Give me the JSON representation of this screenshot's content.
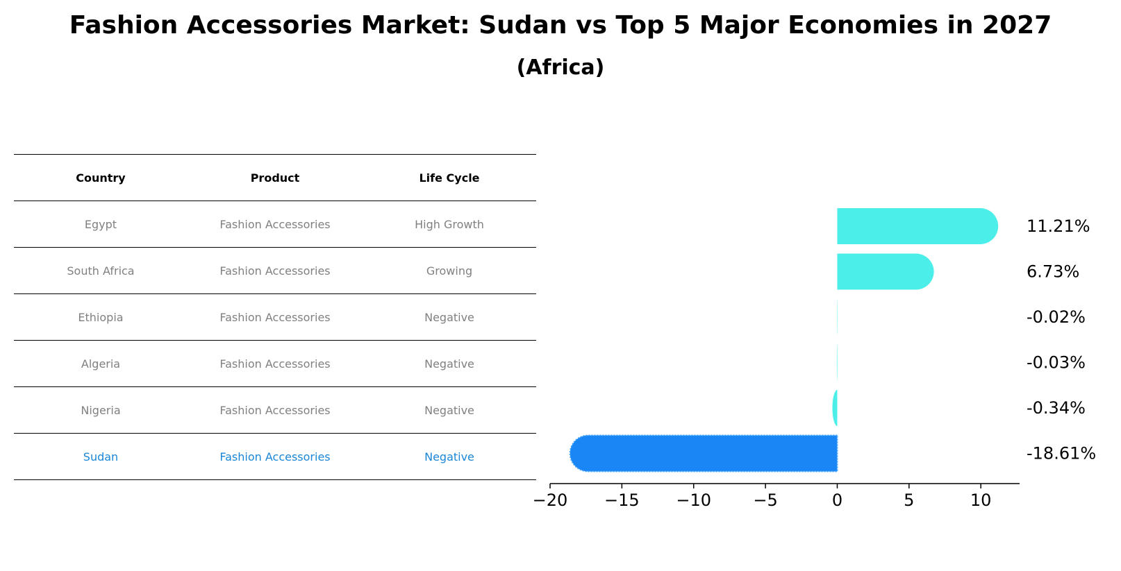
{
  "title": "Fashion Accessories Market: Sudan vs Top 5 Major Economies in 2027",
  "subtitle": "(Africa)",
  "table": {
    "headers": [
      "Country",
      "Product",
      "Life Cycle"
    ],
    "rows": [
      {
        "country": "Egypt",
        "product": "Fashion Accessories",
        "life_cycle": "High Growth"
      },
      {
        "country": "South Africa",
        "product": "Fashion Accessories",
        "life_cycle": "Growing"
      },
      {
        "country": "Ethiopia",
        "product": "Fashion Accessories",
        "life_cycle": "Negative"
      },
      {
        "country": "Algeria",
        "product": "Fashion Accessories",
        "life_cycle": "Negative"
      },
      {
        "country": "Nigeria",
        "product": "Fashion Accessories",
        "life_cycle": "Negative"
      },
      {
        "country": "Sudan",
        "product": "Fashion Accessories",
        "life_cycle": "Negative"
      }
    ]
  },
  "chart_data": {
    "type": "bar",
    "orientation": "horizontal",
    "categories": [
      "Egypt",
      "South Africa",
      "Ethiopia",
      "Algeria",
      "Nigeria",
      "Sudan"
    ],
    "values": [
      11.21,
      6.73,
      -0.02,
      -0.03,
      -0.34,
      -18.61
    ],
    "value_labels": [
      "11.21%",
      "6.73%",
      "-0.02%",
      "-0.03%",
      "-0.34%",
      "-18.61%"
    ],
    "highlight": "Sudan",
    "xlim": [
      -20,
      12.7
    ],
    "xticks": [
      -20,
      -15,
      -10,
      -5,
      0,
      5,
      10
    ],
    "xtick_labels": [
      "−20",
      "−15",
      "−10",
      "−5",
      "0",
      "5",
      "10"
    ],
    "colors": {
      "default": "#4ceee9",
      "highlight": "#1a86f6"
    }
  }
}
